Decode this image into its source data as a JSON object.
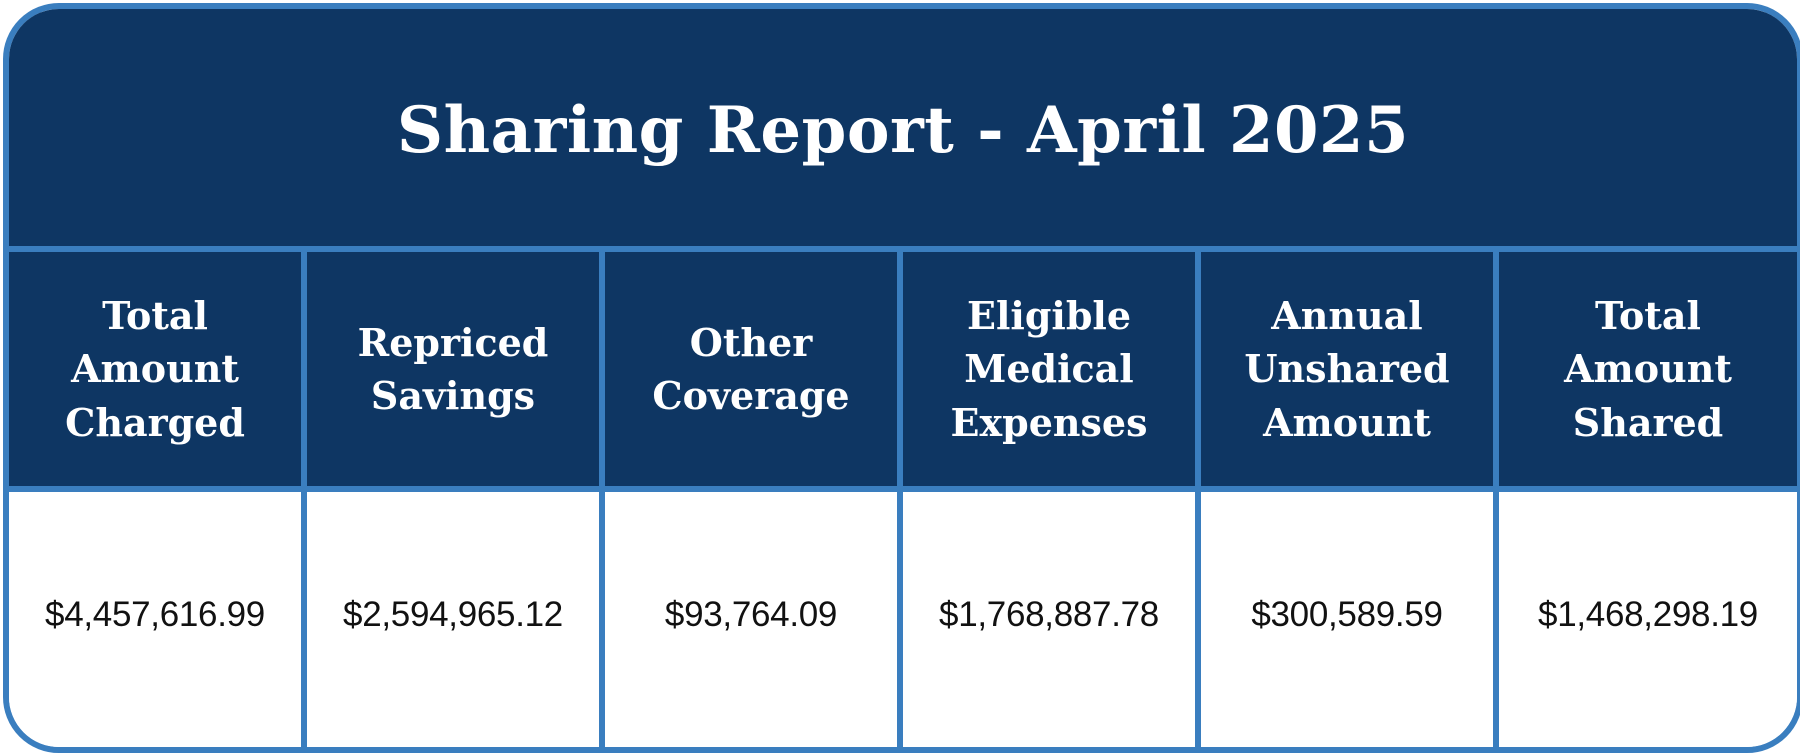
{
  "report": {
    "title": "Sharing Report - April 2025",
    "colors": {
      "header_background": "#0e3663",
      "border": "#3a7ebf",
      "header_text": "#ffffff",
      "value_text": "#111111"
    },
    "columns": [
      {
        "header_lines": [
          "Total",
          "Amount",
          "Charged"
        ],
        "value": "$4,457,616.99"
      },
      {
        "header_lines": [
          "Repriced",
          "Savings"
        ],
        "value": "$2,594,965.12"
      },
      {
        "header_lines": [
          "Other",
          "Coverage"
        ],
        "value": "$93,764.09"
      },
      {
        "header_lines": [
          "Eligible",
          "Medical",
          "Expenses"
        ],
        "value": "$1,768,887.78"
      },
      {
        "header_lines": [
          "Annual",
          "Unshared",
          "Amount"
        ],
        "value": "$300,589.59"
      },
      {
        "header_lines": [
          "Total",
          "Amount",
          "Shared"
        ],
        "value": "$1,468,298.19"
      }
    ]
  }
}
